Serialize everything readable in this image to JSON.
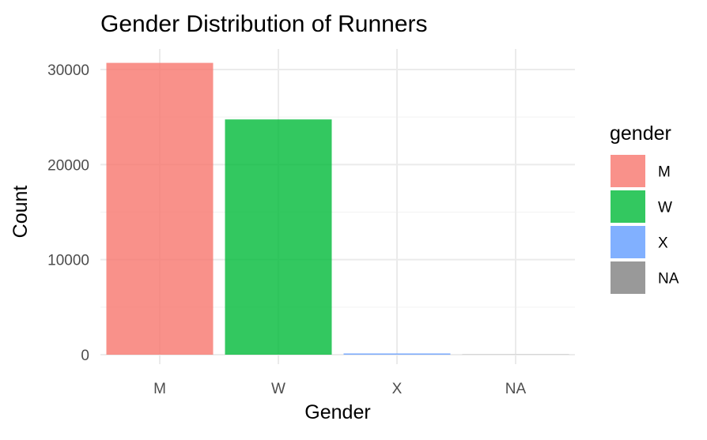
{
  "chart_data": {
    "type": "bar",
    "title": "Gender Distribution of Runners",
    "xlabel": "Gender",
    "ylabel": "Count",
    "categories": [
      "M",
      "W",
      "X",
      "NA"
    ],
    "values": [
      30700,
      24750,
      130,
      20
    ],
    "ylim": [
      0,
      31500
    ],
    "y_ticks": [
      0,
      10000,
      20000,
      30000
    ],
    "y_tick_labels": [
      "0",
      "10000",
      "20000",
      "30000"
    ],
    "grid": true,
    "legend": {
      "title": "gender",
      "placement": "right",
      "entries": [
        {
          "label": "M",
          "color": "#F8766D"
        },
        {
          "label": "W",
          "color": "#00BA38"
        },
        {
          "label": "X",
          "color": "#619CFF"
        },
        {
          "label": "NA",
          "color": "#7F7F7F"
        }
      ]
    },
    "colors": [
      "#F8766D",
      "#00BA38",
      "#619CFF",
      "#7F7F7F"
    ],
    "bar_opacity": 0.8
  }
}
